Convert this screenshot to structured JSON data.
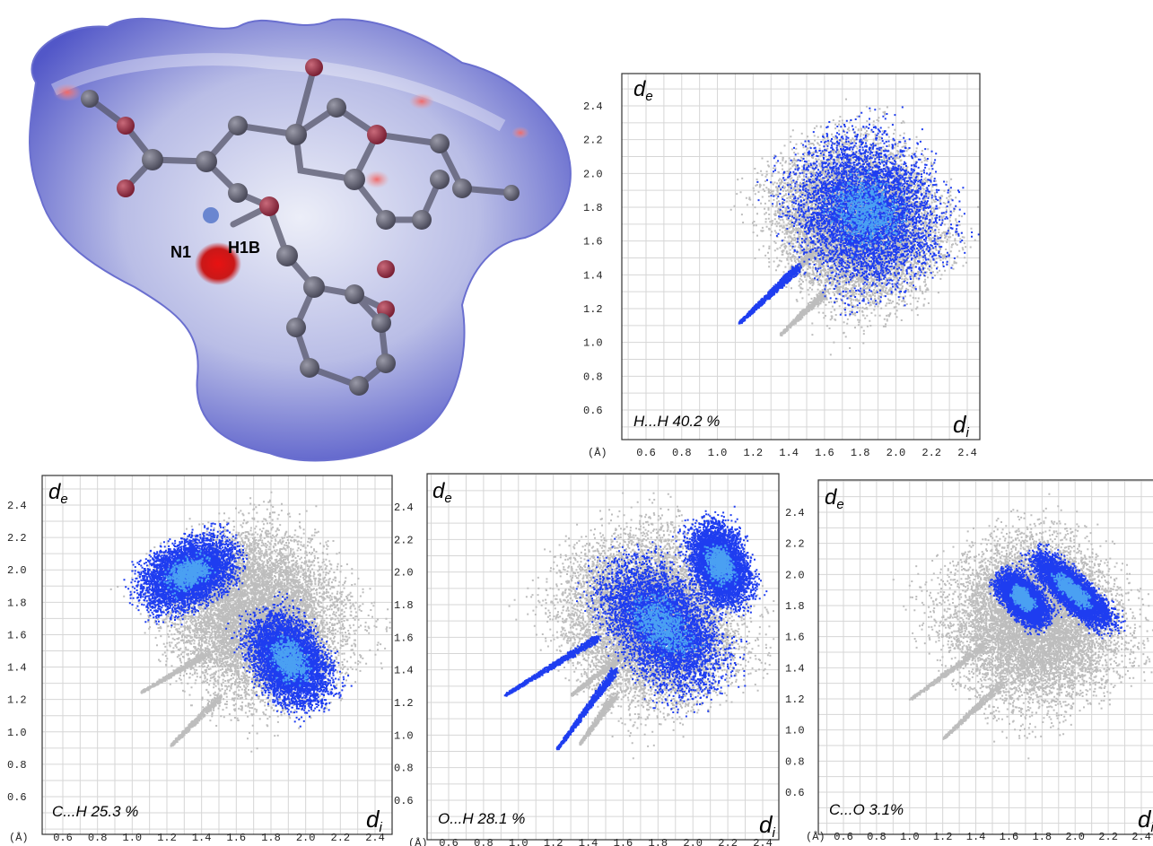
{
  "surface": {
    "atom_labels": [
      "N1",
      "H1B"
    ]
  },
  "axis": {
    "unit": "(Å)",
    "de": "d",
    "de_sub": "e",
    "di": "d",
    "di_sub": "i"
  },
  "colors": {
    "shadow": "#bdbdbd",
    "points": "#1e3df0",
    "points_dense": "#4aa0f2",
    "grid": "#d6d6d6",
    "surface_body": "#c9cce8",
    "surface_blue": "#4a50cc",
    "surface_red": "#d11a1a"
  },
  "chart_data": [
    {
      "type": "scatter",
      "label": "H...H 40.2 %",
      "contact": "H...H",
      "percent": 40.2,
      "xlabel": "d_i",
      "ylabel": "d_e",
      "xlim": [
        0.4,
        2.6
      ],
      "ylim": [
        0.4,
        2.6
      ],
      "x_ticks": [
        "0.6",
        "0.8",
        "1.0",
        "1.2",
        "1.4",
        "1.6",
        "1.8",
        "2.0",
        "2.2",
        "2.4"
      ],
      "y_ticks": [
        "2.4",
        "2.2",
        "2.0",
        "1.8",
        "1.6",
        "1.4",
        "1.2",
        "1.0",
        "0.8",
        "0.6"
      ],
      "grid": true,
      "shadow": {
        "center": [
          1.78,
          1.72
        ],
        "radius": [
          0.62,
          0.68
        ],
        "angle": 35,
        "spikes": [
          [
            1.25,
            1.25,
            1.55,
            1.55
          ],
          [
            1.35,
            1.05,
            1.6,
            1.3
          ]
        ]
      },
      "highlight": {
        "blobs": [
          {
            "center": [
              1.83,
              1.78
            ],
            "radius": [
              0.55,
              0.62
            ],
            "angle": 30
          }
        ],
        "tips": [
          {
            "from": [
              1.12,
              1.12
            ],
            "to": [
              1.45,
              1.45
            ]
          }
        ],
        "min_de_di": [
          1.1,
          1.1
        ]
      }
    },
    {
      "type": "scatter",
      "label": "C...H 25.3 %",
      "contact": "C...H",
      "percent": 25.3,
      "xlabel": "d_i",
      "ylabel": "d_e",
      "xlim": [
        0.4,
        2.6
      ],
      "ylim": [
        0.4,
        2.6
      ],
      "x_ticks": [
        "0.6",
        "0.8",
        "1.0",
        "1.2",
        "1.4",
        "1.6",
        "1.8",
        "2.0",
        "2.2",
        "2.4"
      ],
      "y_ticks": [
        "2.4",
        "2.2",
        "2.0",
        "1.8",
        "1.6",
        "1.4",
        "1.2",
        "1.0",
        "0.8",
        "0.6"
      ],
      "grid": true,
      "shadow": {
        "center": [
          1.72,
          1.72
        ],
        "radius": [
          0.7,
          0.75
        ],
        "angle": 35,
        "spikes": [
          [
            1.05,
            1.25,
            1.45,
            1.5
          ],
          [
            1.22,
            0.92,
            1.5,
            1.22
          ]
        ]
      },
      "highlight": {
        "blobs": [
          {
            "center": [
              1.32,
              1.98
            ],
            "radius": [
              0.26,
              0.4
            ],
            "angle": -60
          },
          {
            "center": [
              1.9,
              1.45
            ],
            "radius": [
              0.28,
              0.42
            ],
            "angle": 30
          }
        ],
        "tips": [],
        "min_de_di": [
          1.08,
          1.6
        ]
      }
    },
    {
      "type": "scatter",
      "label": "O...H 28.1 %",
      "contact": "O...H",
      "percent": 28.1,
      "xlabel": "d_i",
      "ylabel": "d_e",
      "xlim": [
        0.4,
        2.6
      ],
      "ylim": [
        0.4,
        2.6
      ],
      "y_ticks": [
        "2.4",
        "2.2",
        "2.0",
        "1.8",
        "1.6",
        "1.4",
        "1.2",
        "1.0",
        "0.8",
        "0.6"
      ],
      "x_ticks": [
        "0.6",
        "0.8",
        "1.0",
        "1.2",
        "1.4",
        "1.6",
        "1.8",
        "2.0",
        "2.2",
        "2.4"
      ],
      "grid": true,
      "shadow": {
        "center": [
          1.75,
          1.72
        ],
        "radius": [
          0.68,
          0.75
        ],
        "angle": 35,
        "spikes": [
          [
            1.3,
            1.25,
            1.6,
            1.5
          ],
          [
            1.35,
            0.95,
            1.55,
            1.25
          ]
        ]
      },
      "highlight": {
        "blobs": [
          {
            "center": [
              1.82,
              1.68
            ],
            "radius": [
              0.38,
              0.62
            ],
            "angle": 35
          },
          {
            "center": [
              2.15,
              2.05
            ],
            "radius": [
              0.22,
              0.35
            ],
            "angle": 20
          }
        ],
        "tips": [
          {
            "from": [
              0.92,
              1.25
            ],
            "to": [
              1.45,
              1.6
            ]
          },
          {
            "from": [
              1.22,
              0.92
            ],
            "to": [
              1.55,
              1.4
            ]
          }
        ],
        "min_de_di": [
          0.92,
          1.25
        ]
      }
    },
    {
      "type": "scatter",
      "label": "C...O 3.1%",
      "contact": "C...O",
      "percent": 3.1,
      "xlabel": "d_i",
      "ylabel": "d_e",
      "xlim": [
        0.4,
        2.6
      ],
      "ylim": [
        0.4,
        2.6
      ],
      "x_ticks": [
        "0.6",
        "0.8",
        "1.0",
        "1.2",
        "1.4",
        "1.6",
        "1.8",
        "2.0",
        "2.2",
        "2.4"
      ],
      "y_ticks": [
        "2.4",
        "2.2",
        "2.0",
        "1.8",
        "1.6",
        "1.4",
        "1.2",
        "1.0",
        "0.8",
        "0.6"
      ],
      "grid": true,
      "shadow": {
        "center": [
          1.75,
          1.7
        ],
        "radius": [
          0.72,
          0.76
        ],
        "angle": 35,
        "spikes": [
          [
            1.0,
            1.2,
            1.45,
            1.55
          ],
          [
            1.2,
            0.95,
            1.55,
            1.3
          ]
        ]
      },
      "highlight": {
        "blobs": [
          {
            "center": [
              1.68,
              1.85
            ],
            "radius": [
              0.14,
              0.26
            ],
            "angle": 40
          },
          {
            "center": [
              1.98,
              1.9
            ],
            "radius": [
              0.14,
              0.42
            ],
            "angle": 45
          }
        ],
        "tips": [],
        "min_de_di": [
          1.62,
          1.58
        ]
      }
    }
  ]
}
